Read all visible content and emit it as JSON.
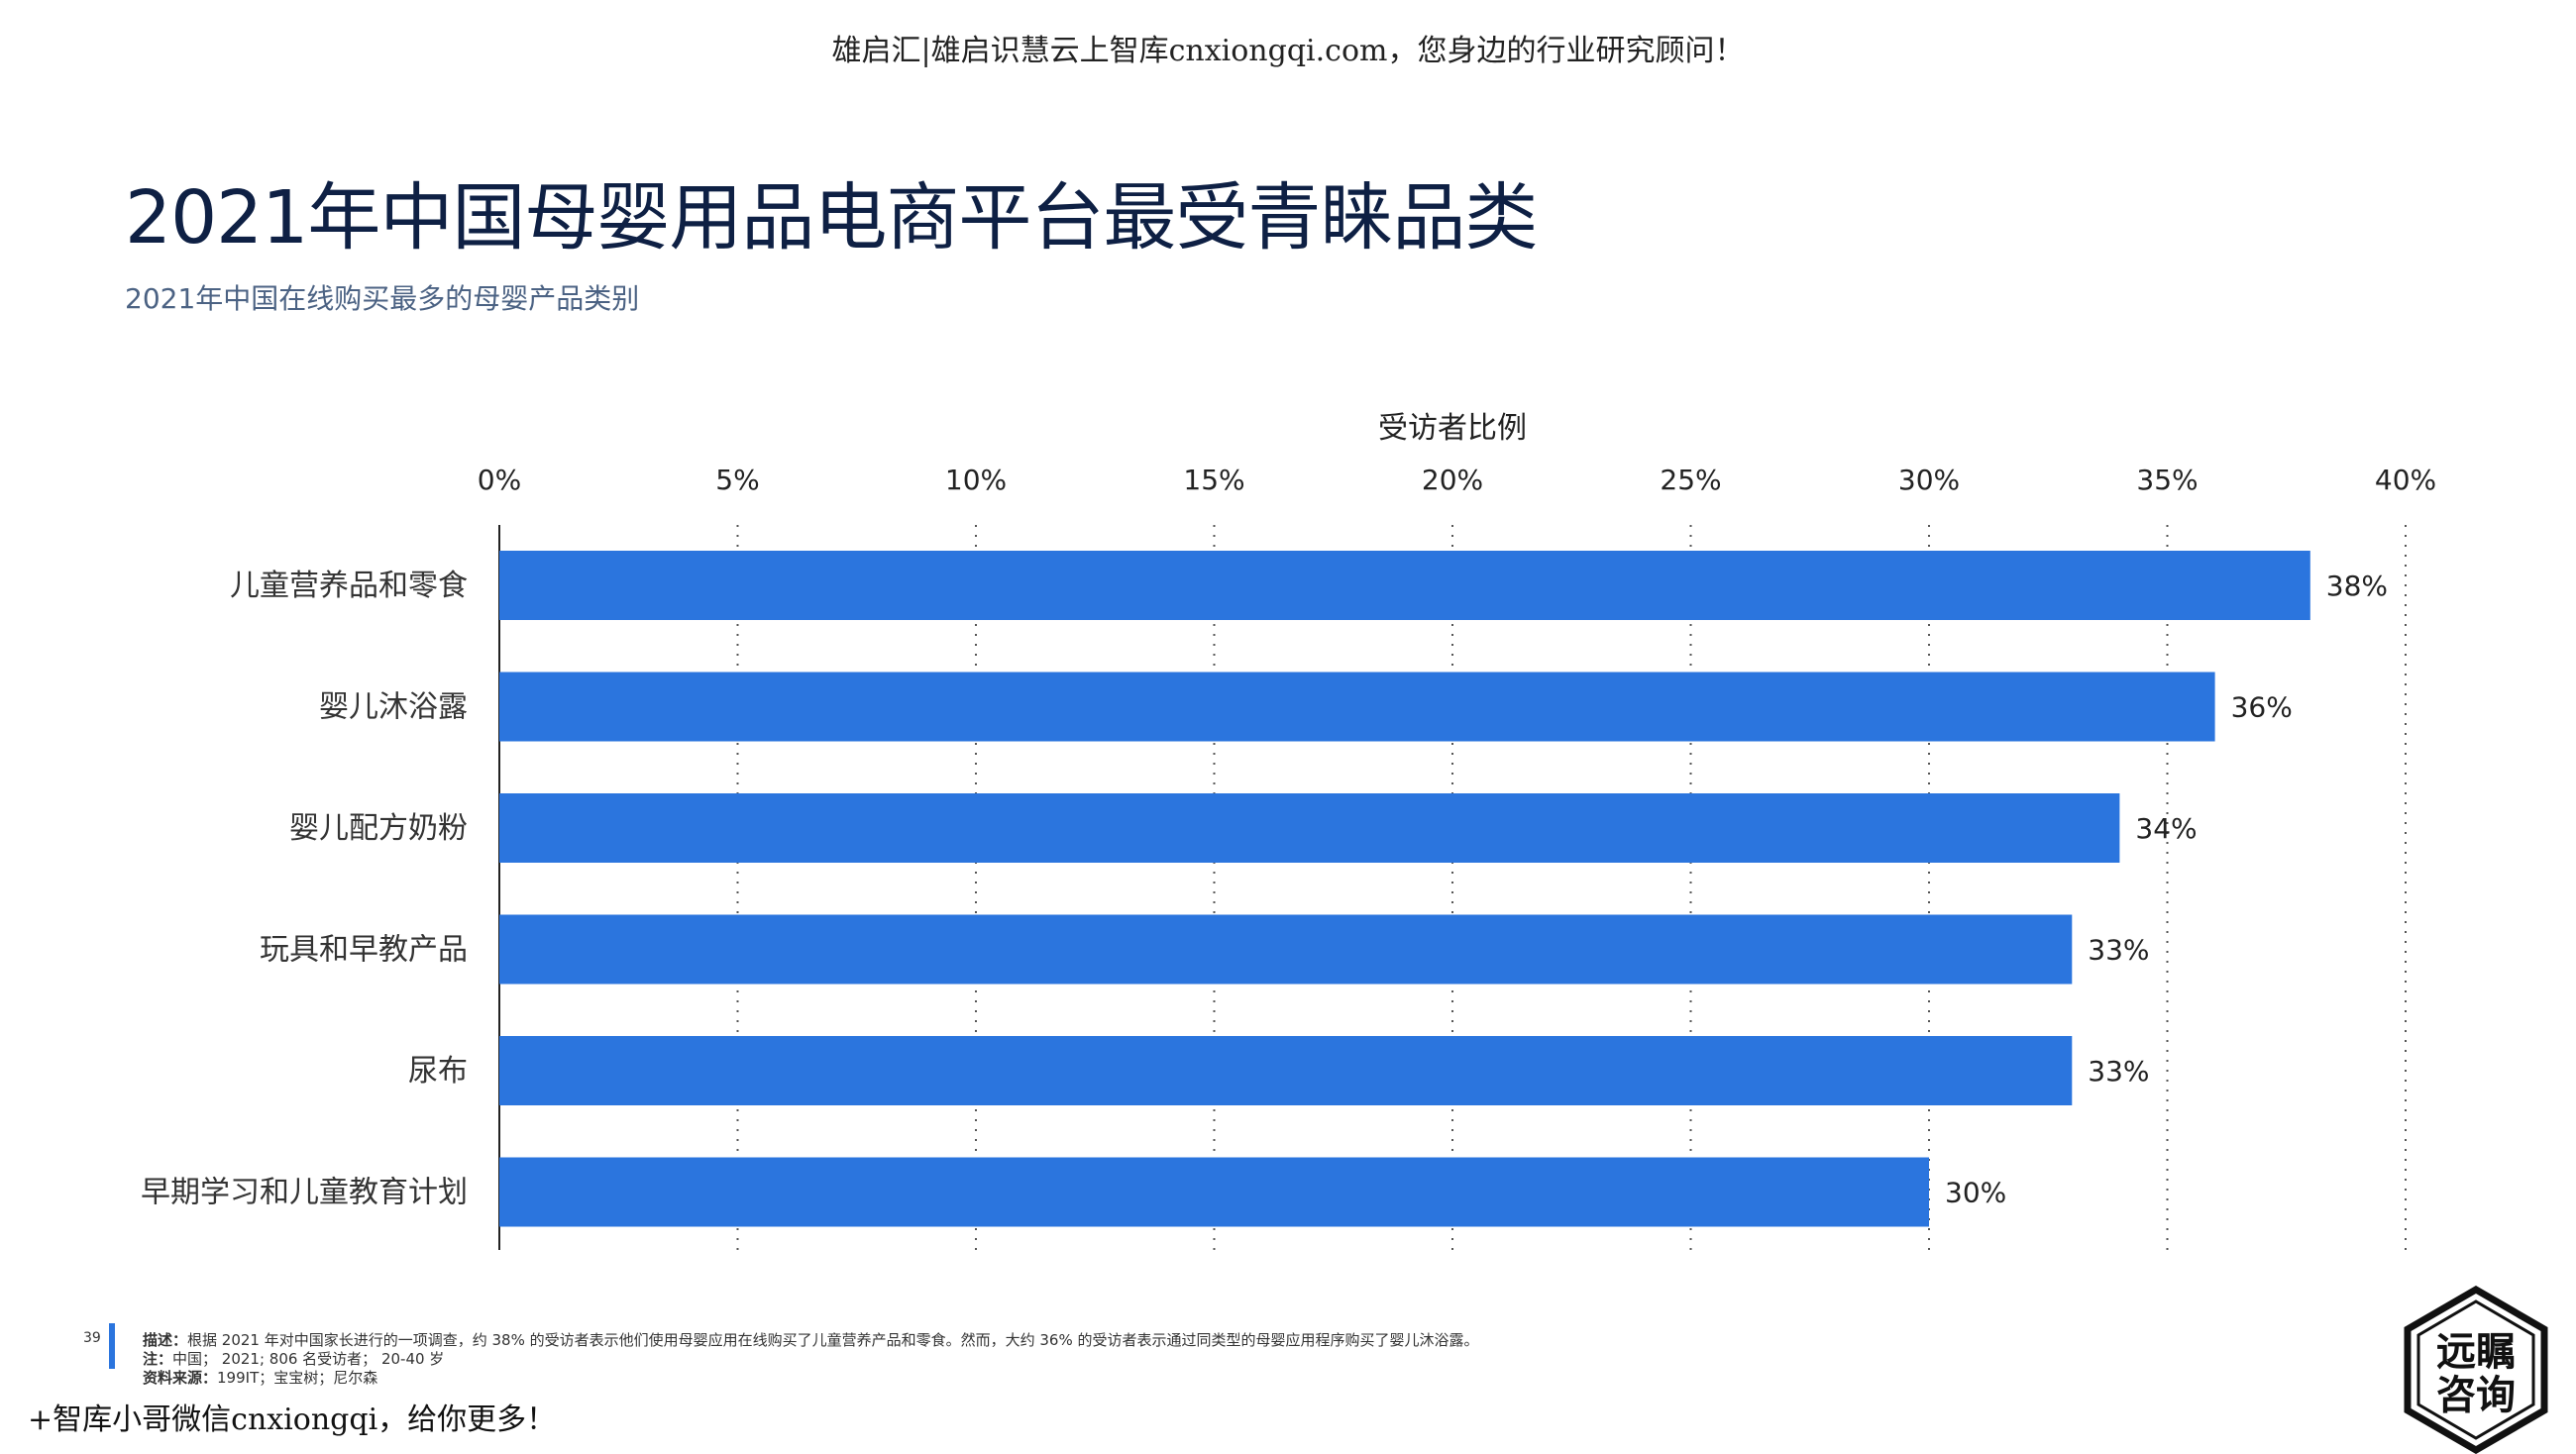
{
  "watermark_top": "雄启汇|雄启识慧云上智库cnxiongqi.com，您身边的行业研究顾问！",
  "title": "2021年中国母婴用品电商平台最受青睐品类",
  "subtitle": "2021年中国在线购买最多的母婴产品类别",
  "chart_data": {
    "type": "bar",
    "orientation": "horizontal",
    "xlabel": "受访者比例",
    "xlim": [
      0,
      40
    ],
    "x_ticks": [
      "0%",
      "5%",
      "10%",
      "15%",
      "20%",
      "25%",
      "30%",
      "35%",
      "40%"
    ],
    "x_tick_values": [
      0,
      5,
      10,
      15,
      20,
      25,
      30,
      35,
      40
    ],
    "categories": [
      "儿童营养品和零食",
      "婴儿沐浴露",
      "婴儿配方奶粉",
      "玩具和早教产品",
      "尿布",
      "早期学习和儿童教育计划"
    ],
    "values": [
      38,
      36,
      34,
      33,
      33,
      30
    ],
    "value_labels": [
      "38%",
      "36%",
      "34%",
      "33%",
      "33%",
      "30%"
    ],
    "grid": "vertical-dotted",
    "axis_position": "top",
    "bar_color": "#2b75de"
  },
  "footer": {
    "page_number": "39",
    "description_label": "描述：",
    "description": "根据 2021 年对中国家长进行的一项调查，约 38% 的受访者表示他们使用母婴应用在线购买了儿童营养产品和零食。然而，大约 36% 的受访者表示通过同类型的母婴应用程序购买了婴儿沐浴露。",
    "note_label": "注：",
    "note": "中国； 2021; 806 名受访者； 20-40 岁",
    "source_label": "资料来源：",
    "source": "199IT；宝宝树；尼尔森"
  },
  "watermark_bottom": "+智库小哥微信cnxiongqi，给你更多！",
  "logo": {
    "line1": "远瞩",
    "line2": "咨询"
  }
}
